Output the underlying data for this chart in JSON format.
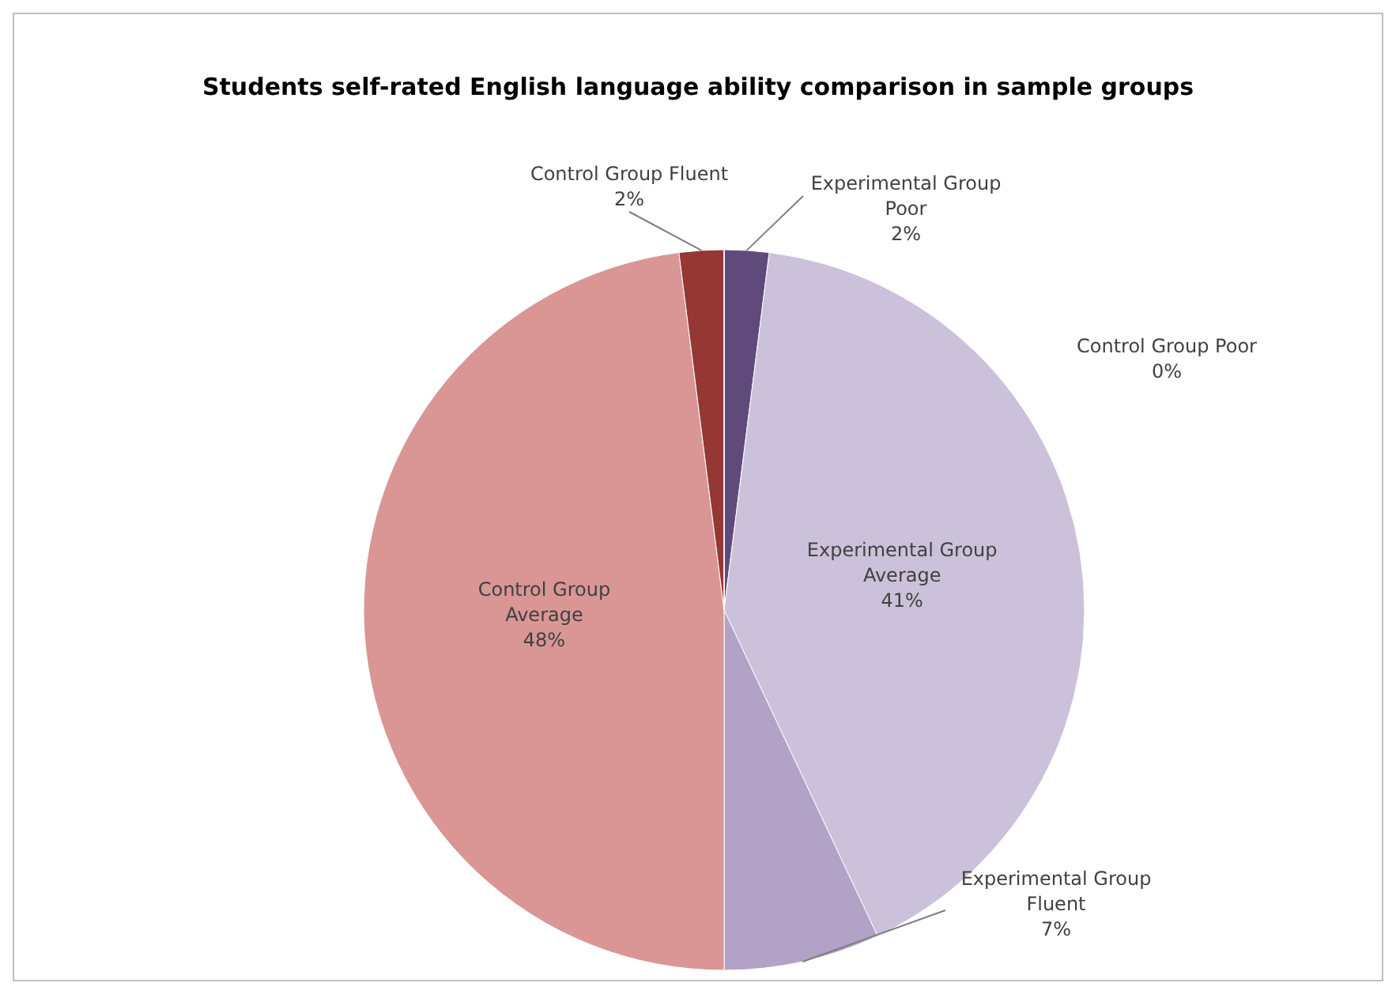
{
  "chart_data": {
    "type": "pie",
    "title": "Students self-rated English language ability comparison in sample groups",
    "categories": [
      "Experimental Group Poor",
      "Experimental Group Average",
      "Experimental Group Fluent",
      "Control Group Average",
      "Control Group Fluent",
      "Control Group Poor"
    ],
    "values": [
      2,
      41,
      7,
      48,
      2,
      0
    ],
    "colors": [
      "#604a7b",
      "#ccc1da",
      "#b3a2c7",
      "#d99694",
      "#953735",
      "#c0504d"
    ],
    "value_labels": [
      "2%",
      "41%",
      "7%",
      "48%",
      "2%",
      "0%"
    ]
  }
}
